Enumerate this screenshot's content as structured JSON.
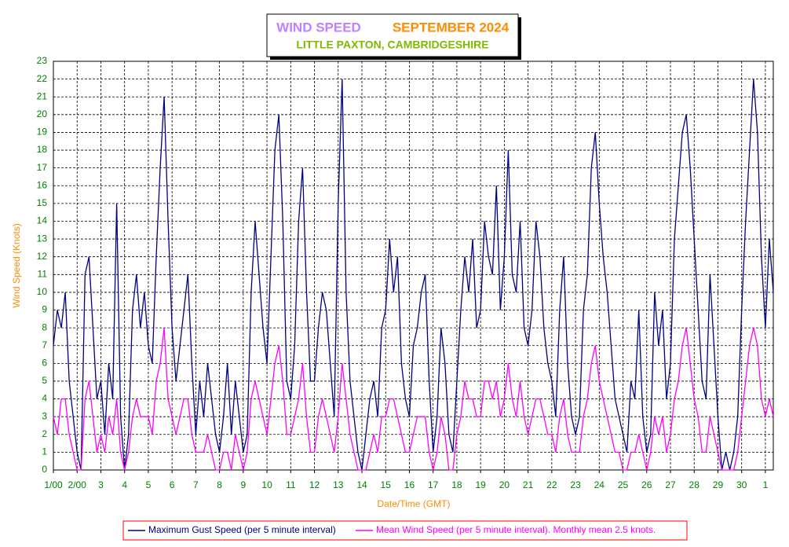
{
  "chart_data": {
    "type": "line",
    "title": "WIND SPEED",
    "subtitle": "SEPTEMBER 2024",
    "location": "LITTLE PAXTON, CAMBRIDGESHIRE",
    "x_label": "Date/Time (GMT)",
    "y_label": "Wind Speed (Knots)",
    "xlim": [
      0,
      728
    ],
    "ylim": [
      0,
      23
    ],
    "grid": true,
    "xticks": [
      {
        "value": 0,
        "label": "1/00"
      },
      {
        "value": 24,
        "label": "2/00"
      },
      {
        "value": 48,
        "label": "3"
      },
      {
        "value": 72,
        "label": "4"
      },
      {
        "value": 96,
        "label": "5"
      },
      {
        "value": 120,
        "label": "6"
      },
      {
        "value": 144,
        "label": "7"
      },
      {
        "value": 168,
        "label": "8"
      },
      {
        "value": 192,
        "label": "9"
      },
      {
        "value": 216,
        "label": "10"
      },
      {
        "value": 240,
        "label": "11"
      },
      {
        "value": 264,
        "label": "12"
      },
      {
        "value": 288,
        "label": "13"
      },
      {
        "value": 312,
        "label": "14"
      },
      {
        "value": 336,
        "label": "15"
      },
      {
        "value": 360,
        "label": "16"
      },
      {
        "value": 384,
        "label": "17"
      },
      {
        "value": 408,
        "label": "18"
      },
      {
        "value": 432,
        "label": "19"
      },
      {
        "value": 456,
        "label": "20"
      },
      {
        "value": 480,
        "label": "21"
      },
      {
        "value": 504,
        "label": "22"
      },
      {
        "value": 528,
        "label": "23"
      },
      {
        "value": 552,
        "label": "24"
      },
      {
        "value": 576,
        "label": "25"
      },
      {
        "value": 600,
        "label": "26"
      },
      {
        "value": 624,
        "label": "27"
      },
      {
        "value": 648,
        "label": "28"
      },
      {
        "value": 672,
        "label": "29"
      },
      {
        "value": 696,
        "label": "30"
      },
      {
        "value": 720,
        "label": "1"
      }
    ],
    "yticks": [
      0,
      1,
      2,
      3,
      4,
      5,
      6,
      7,
      8,
      9,
      10,
      11,
      12,
      13,
      14,
      15,
      16,
      17,
      18,
      19,
      20,
      21,
      22,
      23
    ],
    "x": [
      0,
      4,
      8,
      12,
      16,
      20,
      24,
      28,
      32,
      36,
      40,
      44,
      48,
      52,
      56,
      60,
      64,
      68,
      72,
      76,
      80,
      84,
      88,
      92,
      96,
      100,
      104,
      108,
      112,
      116,
      120,
      124,
      128,
      132,
      136,
      140,
      144,
      148,
      152,
      156,
      160,
      164,
      168,
      172,
      176,
      180,
      184,
      188,
      192,
      196,
      200,
      204,
      208,
      212,
      216,
      220,
      224,
      228,
      232,
      236,
      240,
      244,
      248,
      252,
      256,
      260,
      264,
      268,
      272,
      276,
      280,
      284,
      288,
      292,
      296,
      300,
      304,
      308,
      312,
      316,
      320,
      324,
      328,
      332,
      336,
      340,
      344,
      348,
      352,
      356,
      360,
      364,
      368,
      372,
      376,
      380,
      384,
      388,
      392,
      396,
      400,
      404,
      408,
      412,
      416,
      420,
      424,
      428,
      432,
      436,
      440,
      444,
      448,
      452,
      456,
      460,
      464,
      468,
      472,
      476,
      480,
      484,
      488,
      492,
      496,
      500,
      504,
      508,
      512,
      516,
      520,
      524,
      528,
      532,
      536,
      540,
      544,
      548,
      552,
      556,
      560,
      564,
      568,
      572,
      576,
      580,
      584,
      588,
      592,
      596,
      600,
      604,
      608,
      612,
      616,
      620,
      624,
      628,
      632,
      636,
      640,
      644,
      648,
      652,
      656,
      660,
      664,
      668,
      672,
      676,
      680,
      684,
      688,
      692,
      696,
      700,
      704,
      708,
      712,
      716,
      720,
      724,
      728
    ],
    "series": [
      {
        "name": "Maximum Gust Speed (per 5 minute interval)",
        "color": "#000080",
        "values": [
          7,
          9,
          8,
          10,
          5,
          3,
          1,
          0,
          11,
          12,
          8,
          4,
          5,
          2,
          6,
          4,
          15,
          3,
          0,
          2,
          9,
          11,
          8,
          10,
          7,
          6,
          12,
          17,
          21,
          14,
          8,
          5,
          7,
          9,
          11,
          6,
          2,
          5,
          3,
          6,
          4,
          2,
          1,
          3,
          6,
          2,
          5,
          3,
          1,
          2,
          10,
          14,
          11,
          8,
          6,
          12,
          18,
          20,
          14,
          5,
          4,
          7,
          14,
          17,
          10,
          5,
          5,
          8,
          10,
          9,
          6,
          3,
          15,
          22,
          10,
          5,
          3,
          1,
          0,
          2,
          4,
          5,
          3,
          8,
          9,
          13,
          10,
          12,
          6,
          4,
          3,
          7,
          8,
          10,
          11,
          5,
          1,
          3,
          8,
          6,
          2,
          1,
          5,
          9,
          12,
          10,
          13,
          8,
          9,
          14,
          12,
          11,
          16,
          9,
          12,
          18,
          11,
          10,
          14,
          8,
          7,
          9,
          14,
          12,
          8,
          6,
          5,
          3,
          9,
          12,
          6,
          3,
          2,
          3,
          9,
          11,
          17,
          19,
          15,
          12,
          10,
          7,
          4,
          3,
          2,
          1,
          5,
          4,
          9,
          3,
          1,
          2,
          10,
          7,
          9,
          4,
          6,
          13,
          16,
          19,
          20,
          17,
          13,
          9,
          5,
          4,
          11,
          7,
          3,
          0,
          1,
          0,
          1,
          3,
          9,
          14,
          18,
          22,
          19,
          12,
          8,
          13,
          10
        ]
      },
      {
        "name": "Mean Wind Speed (per 5 minute interval). Monthly mean 2.5 knots.",
        "color": "#ff00ff",
        "values": [
          3,
          2,
          4,
          4,
          2,
          1,
          0,
          0,
          4,
          5,
          3,
          1,
          2,
          1,
          3,
          2,
          4,
          1,
          0,
          1,
          3,
          4,
          3,
          3,
          3,
          2,
          5,
          6,
          8,
          4,
          3,
          2,
          3,
          4,
          4,
          2,
          1,
          1,
          1,
          2,
          1,
          0,
          0,
          1,
          1,
          0,
          2,
          1,
          0,
          1,
          4,
          5,
          4,
          3,
          2,
          4,
          6,
          7,
          5,
          2,
          2,
          3,
          4,
          6,
          3,
          1,
          1,
          3,
          4,
          3,
          2,
          1,
          3,
          6,
          4,
          2,
          1,
          0,
          0,
          0,
          1,
          2,
          1,
          3,
          3,
          4,
          4,
          3,
          2,
          1,
          1,
          2,
          3,
          3,
          3,
          1,
          0,
          1,
          3,
          2,
          0,
          0,
          2,
          3,
          5,
          4,
          4,
          3,
          3,
          5,
          5,
          4,
          5,
          3,
          4,
          6,
          4,
          3,
          5,
          3,
          2,
          3,
          4,
          4,
          3,
          2,
          2,
          1,
          3,
          4,
          2,
          1,
          1,
          1,
          3,
          4,
          6,
          7,
          5,
          4,
          3,
          2,
          1,
          1,
          0,
          0,
          1,
          1,
          2,
          1,
          0,
          1,
          3,
          2,
          3,
          1,
          2,
          4,
          5,
          7,
          8,
          6,
          4,
          3,
          1,
          1,
          3,
          2,
          1,
          0,
          0,
          0,
          0,
          1,
          3,
          5,
          7,
          8,
          7,
          4,
          3,
          4,
          3
        ]
      }
    ]
  }
}
